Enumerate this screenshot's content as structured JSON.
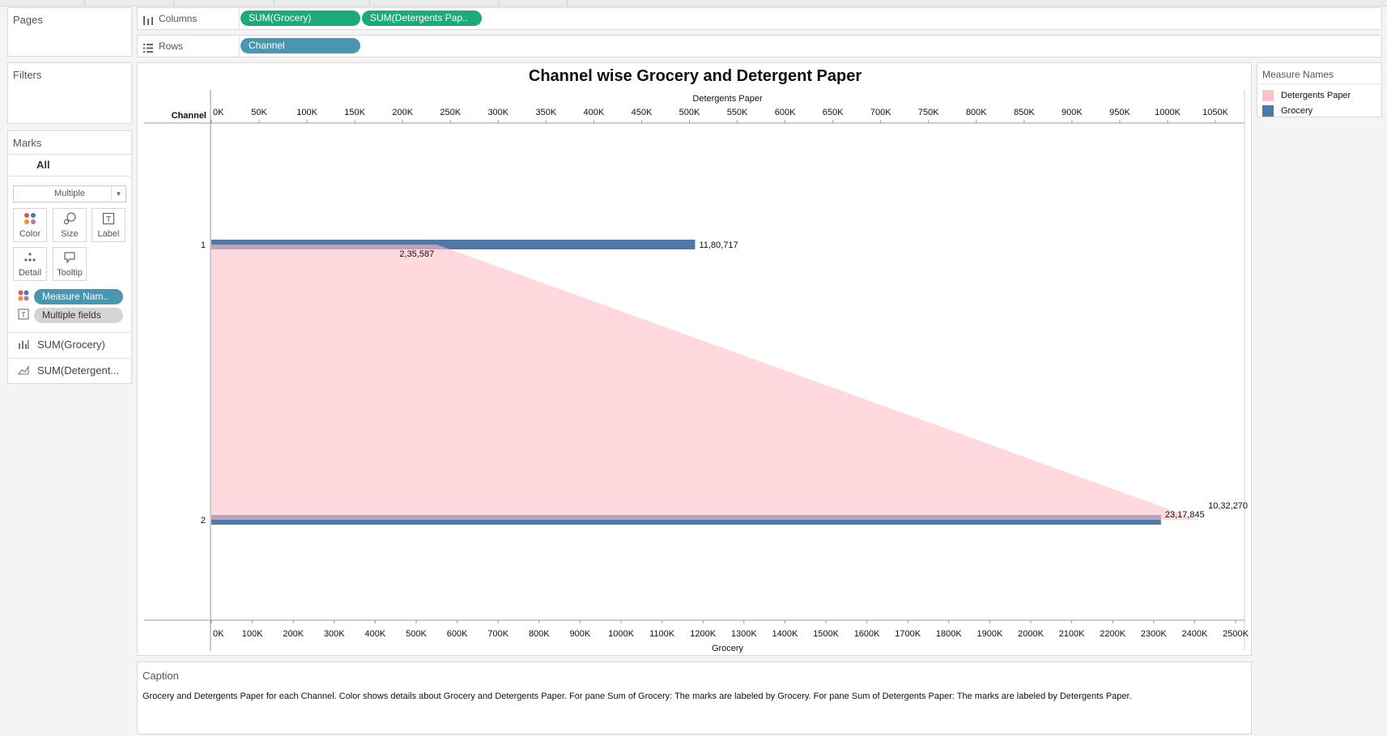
{
  "left_panel": {
    "pages_title": "Pages",
    "filters_title": "Filters",
    "marks_title": "Marks",
    "marks_all": "All",
    "mark_type": "Multiple",
    "mark_buttons": [
      "Color",
      "Size",
      "Label",
      "Detail",
      "Tooltip"
    ],
    "mark_pills": {
      "color": "Measure Nam..",
      "label": "Multiple fields"
    },
    "measure_rows": [
      "SUM(Grocery)",
      "SUM(Detergent..."
    ]
  },
  "shelves": {
    "columns_label": "Columns",
    "columns_pills": [
      "SUM(Grocery)",
      "SUM(Detergents Pap.."
    ],
    "rows_label": "Rows",
    "rows_pills": [
      "Channel"
    ]
  },
  "legend": {
    "title": "Measure Names",
    "items": [
      {
        "label": "Detergents Paper",
        "color": "#ffc0c6"
      },
      {
        "label": "Grocery",
        "color": "#4e79a7"
      }
    ]
  },
  "caption": {
    "title": "Caption",
    "text": "Grocery and Detergents Paper for each Channel.  Color shows details about Grocery and Detergents Paper.  For pane Sum of Grocery:  The marks are labeled by Grocery.  For pane Sum of Detergents Paper:  The marks are labeled by Detergents Paper."
  },
  "chart_data": {
    "type": "bar",
    "title": "Channel wise Grocery and Detergent Paper",
    "row_header": "Channel",
    "categories": [
      "1",
      "2"
    ],
    "series": [
      {
        "name": "Grocery",
        "mark": "bar",
        "color": "#4e79a7",
        "axis": "bottom",
        "values": [
          1180717,
          2317845
        ],
        "labels": [
          "11,80,717",
          "23,17,845"
        ]
      },
      {
        "name": "Detergents Paper",
        "mark": "area",
        "color": "#ffc0c6",
        "axis": "top",
        "values": [
          235587,
          1032270
        ],
        "labels": [
          "2,35,587",
          "10,32,270"
        ]
      }
    ],
    "x_bottom": {
      "label": "Grocery",
      "range": [
        0,
        2500000
      ],
      "ticks": [
        "0K",
        "100K",
        "200K",
        "300K",
        "400K",
        "500K",
        "600K",
        "700K",
        "800K",
        "900K",
        "1000K",
        "1100K",
        "1200K",
        "1300K",
        "1400K",
        "1500K",
        "1600K",
        "1700K",
        "1800K",
        "1900K",
        "2000K",
        "2100K",
        "2200K",
        "2300K",
        "2400K",
        "2500K"
      ]
    },
    "x_top": {
      "label": "Detergents Paper",
      "range": [
        0,
        1050000
      ],
      "ticks": [
        "0K",
        "50K",
        "100K",
        "150K",
        "200K",
        "250K",
        "300K",
        "350K",
        "400K",
        "450K",
        "500K",
        "550K",
        "600K",
        "650K",
        "700K",
        "750K",
        "800K",
        "850K",
        "900K",
        "950K",
        "1000K",
        "1050K"
      ]
    },
    "grid": false,
    "legend_position": "right"
  }
}
